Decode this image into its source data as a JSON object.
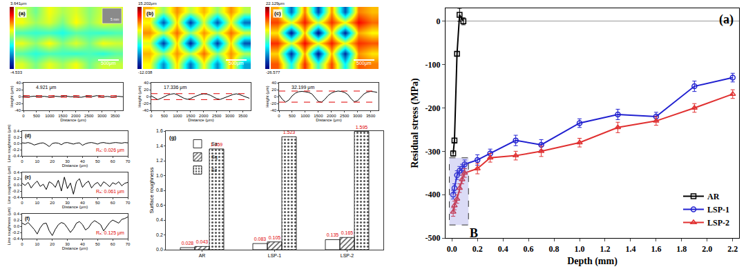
{
  "chart_data": [
    {
      "type": "heatmap",
      "panel": "(a)",
      "tick_labels": false,
      "scale_bar": "500μm",
      "inset_label": "5 mm",
      "zlim": [
        -4.533,
        3.641
      ],
      "zticks": [
        {
          "value": -4.533,
          "label": "-4.533"
        },
        {
          "value": 3.641,
          "label": "3.641μm"
        }
      ],
      "z": [
        [
          0.3,
          -0.5,
          0.4,
          -0.2,
          0.5,
          -0.6,
          0.2,
          0.1
        ],
        [
          -0.8,
          -1.2,
          -0.9,
          -1.0,
          -1.1,
          -0.9,
          -1.2,
          -0.8
        ],
        [
          0.4,
          -0.3,
          0.6,
          -0.4,
          0.3,
          -0.5,
          0.5,
          0.2
        ],
        [
          -0.9,
          -1.1,
          -1.0,
          -1.3,
          -0.8,
          -1.0,
          -1.1,
          -0.9
        ],
        [
          0.5,
          -0.2,
          0.3,
          -0.5,
          0.6,
          -0.3,
          0.4,
          0.1
        ],
        [
          0.2,
          -0.6,
          0.5,
          -0.1,
          0.3,
          -0.4,
          0.2,
          0.3
        ]
      ]
    },
    {
      "type": "heatmap",
      "panel": "(b)",
      "tick_labels": false,
      "scale_bar": "500μm",
      "zlim": [
        -12.038,
        15.202
      ],
      "zticks": [
        {
          "value": -12.038,
          "label": "-12.038"
        },
        {
          "value": 15.202,
          "label": "15.202μm"
        }
      ],
      "z": [
        [
          5,
          -6,
          6,
          -7,
          5,
          -6,
          7,
          -5
        ],
        [
          7,
          2,
          8,
          3,
          9,
          2,
          8,
          3
        ],
        [
          4,
          -9,
          6,
          -10,
          5,
          -9,
          6,
          -8
        ],
        [
          8,
          3,
          9,
          2,
          8,
          3,
          9,
          4
        ],
        [
          5,
          -8,
          6,
          -9,
          4,
          -8,
          5,
          -7
        ],
        [
          7,
          2,
          8,
          3,
          7,
          2,
          8,
          3
        ]
      ]
    },
    {
      "type": "heatmap",
      "panel": "(c)",
      "tick_labels": false,
      "scale_bar": "500μm",
      "zlim": [
        -26.577,
        22.129
      ],
      "zticks": [
        {
          "value": -26.577,
          "label": "-26.577"
        },
        {
          "value": 22.129,
          "label": "22.129μm"
        }
      ],
      "z": [
        [
          12,
          -8,
          14,
          -6,
          13,
          -9,
          12,
          10
        ],
        [
          6,
          -22,
          8,
          -24,
          7,
          -22,
          9,
          5
        ],
        [
          14,
          2,
          16,
          4,
          15,
          3,
          14,
          12
        ],
        [
          5,
          -24,
          7,
          -25,
          6,
          -23,
          8,
          4
        ],
        [
          13,
          3,
          15,
          2,
          14,
          4,
          16,
          11
        ],
        [
          8,
          -18,
          10,
          -20,
          9,
          -19,
          10,
          7
        ]
      ]
    },
    {
      "type": "line",
      "peak_to_valley": "4.921 μm",
      "xlabel": "Distance (μm)",
      "ylabel": "Height (μm)",
      "color": "#000000",
      "xlim": [
        0,
        3800
      ],
      "xticks": [
        0,
        500,
        1000,
        1500,
        2000,
        2500,
        3000,
        3500
      ],
      "ylim": [
        -40,
        40
      ],
      "yticks": [
        -40,
        -20,
        0,
        20,
        40
      ],
      "x": [
        0,
        200,
        400,
        600,
        800,
        1000,
        1200,
        1400,
        1600,
        1800,
        2000,
        2200,
        2400,
        2600,
        2800,
        3000,
        3200,
        3400,
        3600,
        3800
      ],
      "values": [
        0.5,
        -0.8,
        1.2,
        -0.3,
        0.6,
        -1.5,
        0.9,
        -0.2,
        1.8,
        -0.6,
        0.3,
        -2.2,
        1.1,
        -0.4,
        2.7,
        -0.9,
        0.4,
        -1.3,
        0.8,
        -0.5
      ]
    },
    {
      "type": "line",
      "peak_to_valley": "17.336 μm",
      "xlabel": "Distance (μm)",
      "ylabel": "Height (μm)",
      "color": "#000000",
      "xlim": [
        0,
        3800
      ],
      "xticks": [
        0,
        500,
        1000,
        1500,
        2000,
        2500,
        3000,
        3500
      ],
      "ylim": [
        -40,
        40
      ],
      "yticks": [
        -40,
        -20,
        0,
        20,
        40
      ],
      "x": [
        0,
        125,
        250,
        375,
        500,
        625,
        750,
        875,
        1000,
        1125,
        1250,
        1375,
        1500,
        1625,
        1750,
        1875,
        2000,
        2125,
        2250,
        2375,
        2500,
        2625,
        2750,
        2875,
        3000,
        3125,
        3250,
        3375,
        3500,
        3625,
        3750
      ],
      "values": [
        2,
        -4,
        -8.8,
        -5,
        0,
        4,
        7,
        8.5,
        5,
        0,
        -5,
        -8,
        -6,
        -1,
        3,
        6,
        8,
        7,
        4,
        -1,
        -6,
        -8.5,
        -5,
        -1,
        3,
        6,
        8,
        6,
        2,
        -2,
        -5
      ]
    },
    {
      "type": "line",
      "peak_to_valley": "32.199 μm",
      "xlabel": "Distance (μm)",
      "ylabel": "Height (μm)",
      "color": "#000000",
      "xlim": [
        0,
        3800
      ],
      "xticks": [
        0,
        500,
        1000,
        1500,
        2000,
        2500,
        3000,
        3500
      ],
      "ylim": [
        -40,
        40
      ],
      "yticks": [
        -40,
        -20,
        0,
        20,
        40
      ],
      "x": [
        0,
        125,
        250,
        375,
        500,
        625,
        750,
        875,
        1000,
        1125,
        1250,
        1375,
        1500,
        1625,
        1750,
        1875,
        2000,
        2125,
        2250,
        2375,
        2500,
        2625,
        2750,
        2875,
        3000,
        3125,
        3250,
        3375,
        3500,
        3625,
        3750
      ],
      "values": [
        5,
        -8,
        -16,
        -10,
        2,
        10,
        14,
        15,
        14,
        12,
        8,
        -2,
        -14,
        -16.2,
        -8,
        3,
        10,
        14,
        16,
        15,
        12,
        6,
        -6,
        -15,
        -12,
        -2,
        8,
        13,
        15,
        14,
        12
      ]
    },
    {
      "type": "line",
      "panel": "(d)",
      "annotation": "Rₐ: 0.026 μm",
      "xlabel": "Distance (μm)",
      "ylabel": "Line roughness (μm)",
      "color": "#000000",
      "xlim": [
        0,
        70
      ],
      "xticks": [
        0,
        10,
        20,
        30,
        40,
        50,
        60,
        70
      ],
      "ylim": [
        -0.4,
        0.4
      ],
      "yticks": [
        -0.4,
        -0.2,
        {
          "value": 0,
          "label": "0.0"
        },
        0.2,
        0.4
      ],
      "x": [
        0,
        2,
        4,
        6,
        8,
        10,
        12,
        14,
        16,
        18,
        20,
        22,
        24,
        26,
        28,
        30,
        32,
        34,
        36,
        38,
        40,
        42,
        44,
        46,
        48,
        50,
        52,
        54,
        56,
        58,
        60,
        62,
        64,
        66,
        68,
        70
      ],
      "values": [
        0.02,
        0.01,
        0.03,
        0,
        -0.05,
        -0.02,
        0.01,
        0.02,
        -0.03,
        -0.1,
        0,
        0.02,
        0.01,
        -0.04,
        0.02,
        0.03,
        0,
        -0.02,
        0.01,
        0.02,
        -0.06,
        -0.01,
        0.02,
        0.03,
        0.01,
        -0.02,
        0.02,
        0.03,
        0.01,
        0,
        0.02,
        0.03,
        0.02,
        0.01,
        0.03,
        0.02
      ]
    },
    {
      "type": "line",
      "panel": "(e)",
      "annotation": "Rₐ: 0.061 μm",
      "xlabel": "Distance (μm)",
      "ylabel": "Line roughness (μm)",
      "color": "#000000",
      "xlim": [
        0,
        70
      ],
      "xticks": [
        0,
        10,
        20,
        30,
        40,
        50,
        60,
        70
      ],
      "ylim": [
        -0.4,
        0.4
      ],
      "yticks": [
        -0.4,
        -0.2,
        {
          "value": 0,
          "label": "0.0"
        },
        0.2,
        0.4
      ],
      "x": [
        0,
        2,
        4,
        6,
        8,
        10,
        12,
        14,
        16,
        18,
        20,
        22,
        24,
        26,
        28,
        30,
        32,
        34,
        36,
        38,
        40,
        42,
        44,
        46,
        48,
        50,
        52,
        54,
        56,
        58,
        60,
        62,
        64,
        66,
        68,
        70
      ],
      "values": [
        0.05,
        -0.02,
        0.08,
        -0.1,
        0.03,
        0.12,
        -0.05,
        0.02,
        -0.15,
        0.1,
        0.04,
        -0.08,
        0.15,
        -0.2,
        0.25,
        -0.12,
        0.06,
        -0.3,
        0.1,
        0.2,
        -0.08,
        0.05,
        0.12,
        -0.1,
        0.02,
        0.08,
        -0.05,
        0.1,
        0.03,
        -0.06,
        0.07,
        0.02,
        0.1,
        -0.03,
        0.05,
        0.08
      ]
    },
    {
      "type": "line",
      "panel": "(f)",
      "annotation": "Rₐ: 0.125 μm",
      "xlabel": "Distance (μm)",
      "ylabel": "Line roughness (μm)",
      "color": "#000000",
      "xlim": [
        0,
        70
      ],
      "xticks": [
        0,
        10,
        20,
        30,
        40,
        50,
        60,
        70
      ],
      "ylim": [
        -0.4,
        0.4
      ],
      "yticks": [
        -0.4,
        -0.2,
        {
          "value": 0,
          "label": "0.0"
        },
        0.2,
        0.4
      ],
      "x": [
        0,
        2,
        4,
        6,
        8,
        10,
        12,
        14,
        16,
        18,
        20,
        22,
        24,
        26,
        28,
        30,
        32,
        34,
        36,
        38,
        40,
        42,
        44,
        46,
        48,
        50,
        52,
        54,
        56,
        58,
        60,
        62,
        64,
        66,
        68,
        70
      ],
      "values": [
        0.1,
        0.05,
        0.12,
        0.02,
        -0.1,
        -0.25,
        -0.05,
        0.08,
        0.1,
        -0.15,
        -0.3,
        -0.1,
        0.05,
        0.12,
        0.08,
        -0.05,
        -0.2,
        -0.08,
        0.1,
        0.15,
        0.05,
        -0.12,
        -0.05,
        0.1,
        0.18,
        0.12,
        0.05,
        -0.15,
        -0.02,
        0.12,
        0.2,
        0.15,
        0.1,
        0.22,
        0.25,
        0.3
      ]
    },
    {
      "type": "bar",
      "panel": "(g)",
      "ylabel": "Surface roughness",
      "categories": [
        "AR",
        "LSP-1",
        "LSP-2"
      ],
      "series": [
        {
          "name": "Sa",
          "color": "#ffffff",
          "values": [
            0.028,
            0.083,
            0.135
          ]
        },
        {
          "name": "Sq",
          "color": "#ffffff",
          "values": [
            0.043,
            0.105,
            0.165
          ]
        },
        {
          "name": "Sz",
          "color": "#d0d0d0",
          "values": [
            1.359,
            1.523,
            1.595
          ]
        }
      ],
      "ylim": [
        0,
        1.6
      ],
      "yticks": [
        {
          "value": 0,
          "label": "0.0"
        },
        0.2,
        0.4,
        0.6,
        0.8,
        {
          "value": 1,
          "label": "1.0"
        },
        1.2,
        1.4,
        1.6
      ],
      "data_labels": true,
      "legend": "upper left"
    },
    {
      "type": "line",
      "panel": "(a)",
      "xlabel": "Depth (mm)",
      "ylabel": "Residual stress (MPa)",
      "xlim": [
        -0.05,
        2.25
      ],
      "xticks": [
        {
          "value": 0,
          "label": "0.0"
        },
        0.2,
        0.4,
        0.6,
        0.8,
        {
          "value": 1,
          "label": "1.0"
        },
        1.2,
        1.4,
        1.6,
        1.8,
        {
          "value": 2,
          "label": "2.0"
        },
        2.2
      ],
      "ylim": [
        -500,
        30
      ],
      "yticks": [
        -500,
        -400,
        -300,
        -200,
        -100,
        0
      ],
      "legend": "lower right",
      "highlight": {
        "label": "B",
        "x": [
          -0.02,
          0.13
        ],
        "y": [
          -470,
          -315
        ]
      },
      "series": [
        {
          "name": "AR",
          "color": "#000000",
          "marker": "square",
          "x": [
            0.01,
            0.02,
            0.04,
            0.06,
            0.09
          ],
          "values": [
            -305,
            -275,
            -75,
            15,
            0
          ],
          "errors": [
            6,
            5,
            5,
            15,
            8
          ]
        },
        {
          "name": "LSP-1",
          "color": "#2020d0",
          "marker": "circle",
          "x": [
            0.01,
            0.02,
            0.04,
            0.06,
            0.08,
            0.1,
            0.2,
            0.3,
            0.5,
            0.7,
            1.0,
            1.3,
            1.6,
            1.9,
            2.2
          ],
          "values": [
            -400,
            -385,
            -355,
            -345,
            -340,
            -330,
            -320,
            -305,
            -275,
            -285,
            -235,
            -215,
            -220,
            -150,
            -130
          ],
          "errors": [
            10,
            10,
            10,
            10,
            10,
            10,
            12,
            10,
            12,
            12,
            10,
            12,
            10,
            12,
            10
          ]
        },
        {
          "name": "LSP-2",
          "color": "#e03030",
          "marker": "triangle",
          "x": [
            0.01,
            0.02,
            0.04,
            0.06,
            0.08,
            0.1,
            0.2,
            0.3,
            0.5,
            0.7,
            1.0,
            1.3,
            1.6,
            1.9,
            2.2
          ],
          "values": [
            -440,
            -425,
            -410,
            -385,
            -365,
            -350,
            -340,
            -315,
            -310,
            -300,
            -280,
            -245,
            -230,
            -200,
            -168
          ],
          "errors": [
            10,
            10,
            10,
            10,
            10,
            10,
            12,
            10,
            10,
            12,
            10,
            12,
            10,
            10,
            10
          ]
        }
      ]
    }
  ]
}
